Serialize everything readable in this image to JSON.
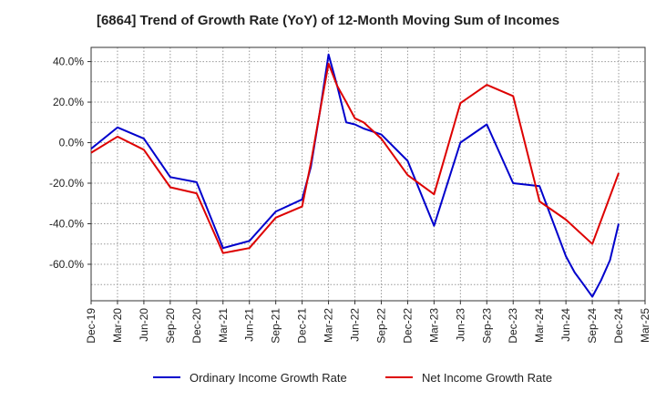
{
  "chart_data": {
    "type": "line",
    "title": "[6864]  Trend of Growth Rate (YoY) of 12-Month Moving Sum of Incomes",
    "xlabel": "",
    "ylabel": "",
    "x_tick_labels": [
      "Dec-19",
      "Mar-20",
      "Jun-20",
      "Sep-20",
      "Dec-20",
      "Mar-21",
      "Jun-21",
      "Sep-21",
      "Dec-21",
      "Mar-22",
      "Jun-22",
      "Sep-22",
      "Dec-22",
      "Mar-23",
      "Jun-23",
      "Sep-23",
      "Dec-23",
      "Mar-24",
      "Jun-24",
      "Sep-24",
      "Dec-24",
      "Mar-25"
    ],
    "y_tick_values": [
      40,
      20,
      0,
      -20,
      -40,
      -60
    ],
    "y_tick_labels": [
      "40.0%",
      "20.0%",
      "0.0%",
      "-20.0%",
      "-40.0%",
      "-60.0%"
    ],
    "ylim": [
      -78,
      47
    ],
    "grid": true,
    "legend_position": "bottom",
    "series": [
      {
        "name": "Ordinary Income Growth Rate",
        "color": "#0000cc",
        "values": [
          [
            0,
            -3
          ],
          [
            1,
            7.5
          ],
          [
            2,
            2
          ],
          [
            3,
            -17
          ],
          [
            4,
            -19.5
          ],
          [
            5,
            -52
          ],
          [
            6,
            -48.5
          ],
          [
            7,
            -34
          ],
          [
            8,
            -28
          ],
          [
            8.33,
            -12
          ],
          [
            8.67,
            15
          ],
          [
            9,
            43.5
          ],
          [
            9.33,
            28
          ],
          [
            9.67,
            10
          ],
          [
            10,
            9
          ],
          [
            10.33,
            7
          ],
          [
            10.67,
            5.5
          ],
          [
            11,
            4
          ],
          [
            12,
            -9
          ],
          [
            13,
            -41
          ],
          [
            14,
            0
          ],
          [
            15,
            9
          ],
          [
            16,
            -20
          ],
          [
            17,
            -21.5
          ],
          [
            18,
            -56
          ],
          [
            18.33,
            -64
          ],
          [
            18.67,
            -70
          ],
          [
            19,
            -76
          ],
          [
            19.33,
            -68
          ],
          [
            19.67,
            -58
          ],
          [
            20,
            -40
          ]
        ]
      },
      {
        "name": "Net Income Growth Rate",
        "color": "#dd0000",
        "values": [
          [
            0,
            -5
          ],
          [
            1,
            3
          ],
          [
            2,
            -3.5
          ],
          [
            3,
            -22
          ],
          [
            4,
            -25
          ],
          [
            5,
            -54.5
          ],
          [
            6,
            -52
          ],
          [
            7,
            -37
          ],
          [
            8,
            -31.5
          ],
          [
            8.33,
            -10
          ],
          [
            8.67,
            15
          ],
          [
            9,
            39
          ],
          [
            9.33,
            28
          ],
          [
            9.67,
            20
          ],
          [
            10,
            12
          ],
          [
            10.33,
            10
          ],
          [
            10.67,
            6
          ],
          [
            11,
            2
          ],
          [
            12,
            -16
          ],
          [
            13,
            -25.5
          ],
          [
            14,
            19.5
          ],
          [
            15,
            28.5
          ],
          [
            16,
            23
          ],
          [
            17,
            -29
          ],
          [
            18,
            -38
          ],
          [
            19,
            -50
          ],
          [
            20,
            -15
          ]
        ]
      }
    ]
  }
}
